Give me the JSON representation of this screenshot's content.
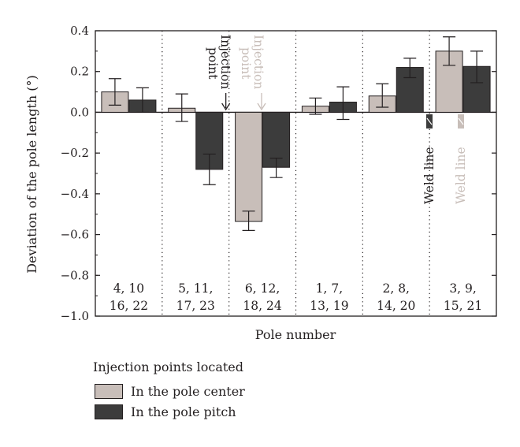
{
  "chart_data": {
    "type": "bar",
    "ylabel": "Deviation of the pole length (°)",
    "xlabel": "Pole number",
    "ylim": [
      -1.0,
      0.4
    ],
    "yticks": [
      "0.4",
      "0.2",
      "0.0",
      "−0.2",
      "−0.4",
      "−0.6",
      "−0.8",
      "−1.0"
    ],
    "ytick_values": [
      0.4,
      0.2,
      0.0,
      -0.2,
      -0.4,
      -0.6,
      -0.8,
      -1.0
    ],
    "categories": [
      [
        "4, 10",
        "16, 22"
      ],
      [
        "5, 11,",
        "17, 23"
      ],
      [
        "6, 12,",
        "18, 24"
      ],
      [
        "1, 7,",
        "13, 19"
      ],
      [
        "2, 8,",
        "14, 20"
      ],
      [
        "3, 9,",
        "15, 21"
      ]
    ],
    "series": [
      {
        "name": "In the pole center",
        "color": "#c8beb9",
        "values": [
          0.1,
          0.02,
          -0.535,
          0.03,
          0.08,
          0.3
        ],
        "error_low": [
          0.035,
          -0.045,
          -0.58,
          -0.01,
          0.025,
          0.23
        ],
        "error_high": [
          0.165,
          0.09,
          -0.485,
          0.07,
          0.14,
          0.37
        ]
      },
      {
        "name": "In the pole pitch",
        "color": "#3c3c3c",
        "values": [
          0.06,
          -0.28,
          -0.27,
          0.05,
          0.22,
          0.225
        ],
        "error_low": [
          0.0,
          -0.355,
          -0.32,
          -0.035,
          0.17,
          0.145
        ],
        "error_high": [
          0.12,
          -0.205,
          -0.225,
          0.125,
          0.265,
          0.3
        ]
      }
    ],
    "annotations": {
      "injection_dark": [
        "Injection",
        "point"
      ],
      "injection_light": [
        "Injection",
        "point"
      ],
      "weld_dark": "Weld line",
      "weld_light": "Weld line"
    },
    "grid": false,
    "group_separators": "dotted",
    "legend": {
      "title": "Injection points located",
      "position": "bottom-left"
    }
  }
}
